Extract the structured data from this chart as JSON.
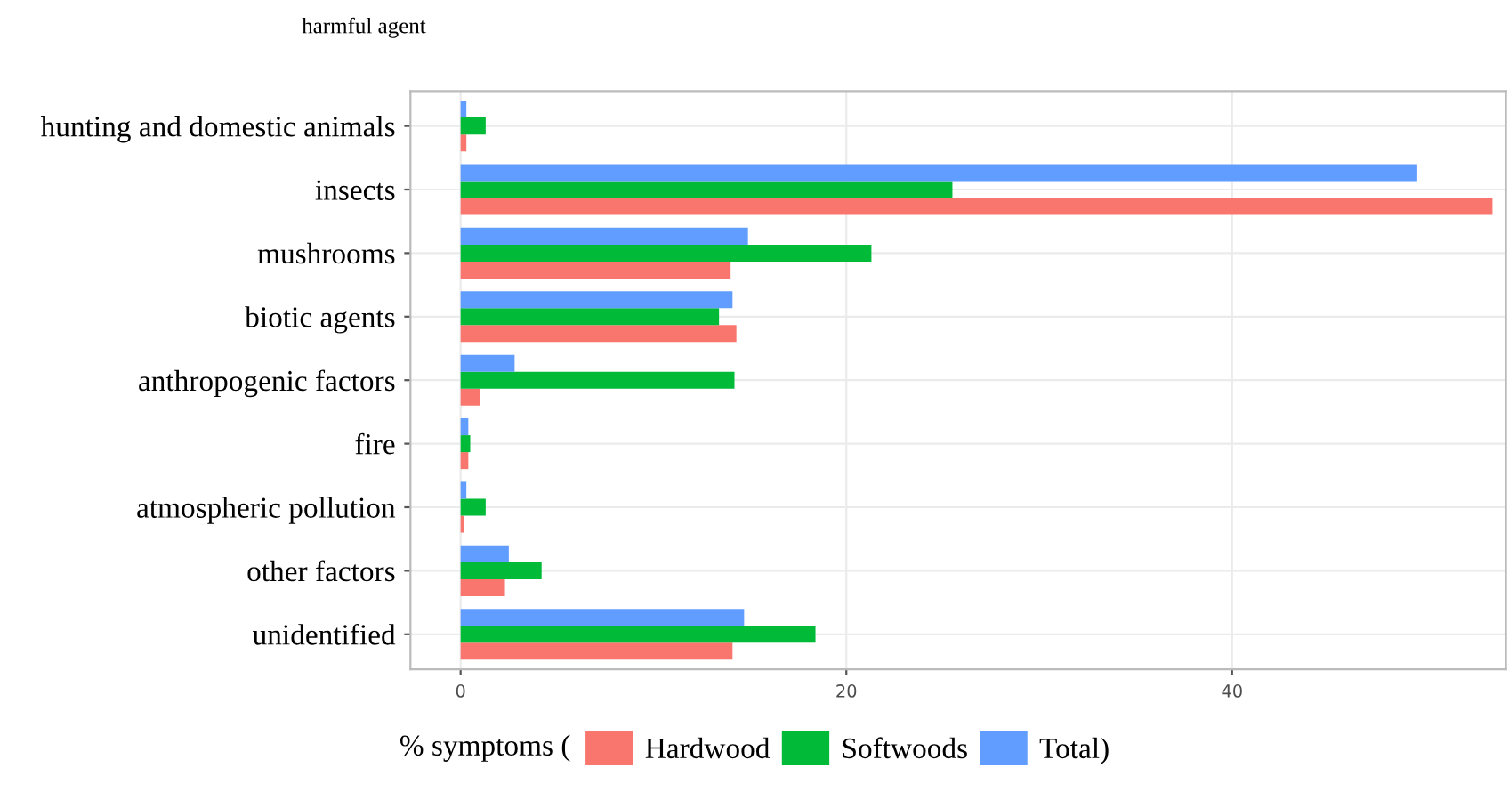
{
  "chart_data": {
    "type": "bar",
    "orientation": "horizontal",
    "title": "harmful agent",
    "legend_title": "% symptoms (",
    "categories": [
      "hunting and domestic animals",
      "insects",
      "mushrooms",
      "biotic agents",
      "anthropogenic factors",
      "fire",
      "atmospheric pollution",
      "other factors",
      "unidentified"
    ],
    "series": [
      {
        "name": "Hardwood",
        "color": "#f8766d",
        "values": [
          0.3,
          53.5,
          14.0,
          14.3,
          1.0,
          0.4,
          0.2,
          2.3,
          14.1
        ]
      },
      {
        "name": "Softwoods",
        "color": "#00ba38",
        "values": [
          1.3,
          25.5,
          21.3,
          13.4,
          14.2,
          0.5,
          1.3,
          4.2,
          18.4
        ]
      },
      {
        "name": "Total)",
        "color": "#619cff",
        "values": [
          0.3,
          49.6,
          14.9,
          14.1,
          2.8,
          0.4,
          0.3,
          2.5,
          14.7
        ]
      }
    ],
    "xlim": [
      -2.6,
      54.2
    ],
    "xticks": [
      0,
      20,
      40
    ],
    "grid": true,
    "legend": "bottom"
  }
}
